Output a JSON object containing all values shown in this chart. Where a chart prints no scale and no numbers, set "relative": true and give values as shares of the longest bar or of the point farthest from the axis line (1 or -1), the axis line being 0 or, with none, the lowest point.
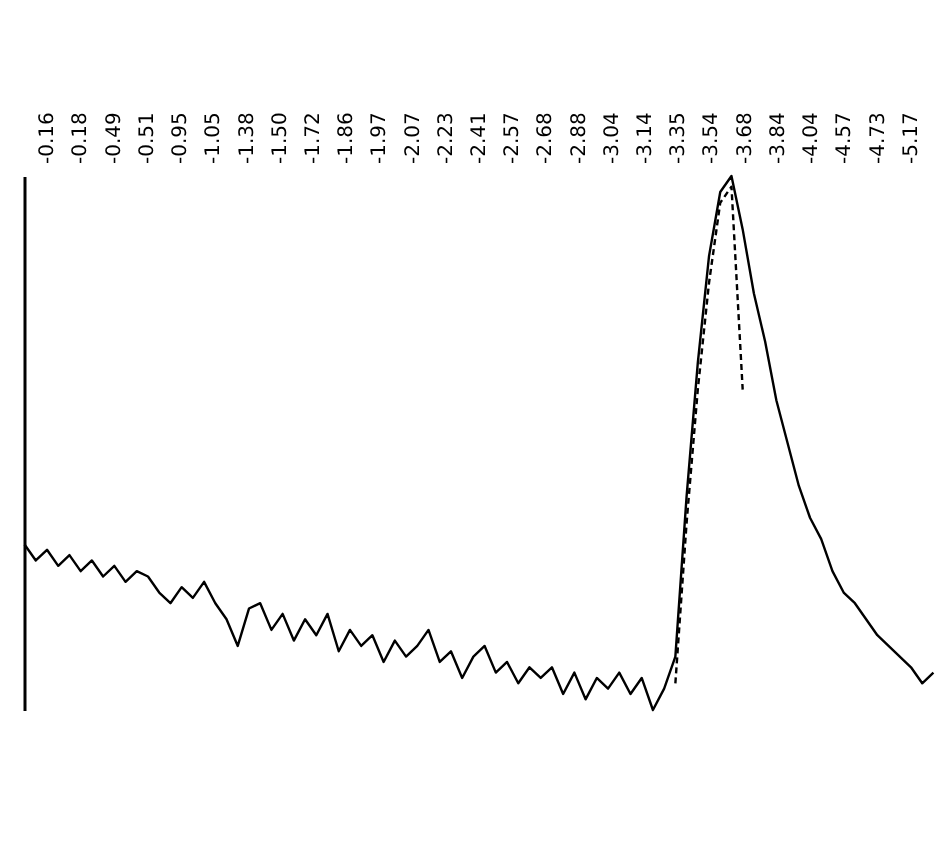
{
  "chart_data": {
    "type": "line",
    "relative": true,
    "tick_labels": false,
    "grid": false,
    "marker": "none",
    "annotations": [
      "-0.16",
      "-0.18",
      "-0.49",
      "-0.51",
      "-0.95",
      "-1.05",
      "-1.38",
      "-1.50",
      "-1.72",
      "-1.86",
      "-1.97",
      "-2.07",
      "-2.23",
      "-2.41",
      "-2.57",
      "-2.68",
      "-2.88",
      "-3.04",
      "-3.14",
      "-3.35",
      "-3.54",
      "-3.68",
      "-3.84",
      "-4.04",
      "-4.57",
      "-4.73",
      "-5.17"
    ],
    "categories": [
      null,
      null,
      null,
      null,
      null,
      null,
      null,
      null,
      null,
      null,
      null,
      null,
      null,
      null,
      null,
      null,
      null,
      null,
      null,
      null,
      null,
      null,
      null,
      null,
      null,
      null,
      null,
      null,
      null,
      null,
      null,
      null,
      null,
      null,
      null,
      null,
      null,
      null,
      null,
      null,
      null,
      null,
      null,
      null,
      null,
      null,
      null,
      null,
      null,
      null,
      null,
      null,
      null,
      null,
      null,
      null,
      null,
      null,
      null,
      null,
      null,
      null,
      null,
      null,
      null,
      null,
      null,
      null,
      null,
      null,
      null,
      null,
      null,
      null,
      null,
      null,
      null,
      null,
      null,
      null,
      null,
      null
    ],
    "series": [
      {
        "color": "#000000",
        "line_style": "solid",
        "values": [
          0.31,
          0.28,
          0.3,
          0.27,
          0.29,
          0.26,
          0.28,
          0.25,
          0.27,
          0.24,
          0.26,
          0.25,
          0.22,
          0.2,
          0.23,
          0.21,
          0.24,
          0.2,
          0.17,
          0.12,
          0.19,
          0.2,
          0.15,
          0.18,
          0.13,
          0.17,
          0.14,
          0.18,
          0.11,
          0.15,
          0.12,
          0.14,
          0.09,
          0.13,
          0.1,
          0.12,
          0.15,
          0.09,
          0.11,
          0.06,
          0.1,
          0.12,
          0.07,
          0.09,
          0.05,
          0.08,
          0.06,
          0.08,
          0.03,
          0.07,
          0.02,
          0.06,
          0.04,
          0.07,
          0.03,
          0.06,
          0,
          0.04,
          0.1,
          0.4,
          0.65,
          0.85,
          0.97,
          1,
          0.9,
          0.78,
          0.69,
          0.58,
          0.5,
          0.42,
          0.36,
          0.32,
          0.26,
          0.22,
          0.2,
          0.17,
          0.14,
          0.12,
          0.1,
          0.08,
          0.05,
          0.07
        ]
      },
      {
        "color": "#000000",
        "line_style": "dashed",
        "values": [
          null,
          null,
          null,
          null,
          null,
          null,
          null,
          null,
          null,
          null,
          null,
          null,
          null,
          null,
          null,
          null,
          null,
          null,
          null,
          null,
          null,
          null,
          null,
          null,
          null,
          null,
          null,
          null,
          null,
          null,
          null,
          null,
          null,
          null,
          null,
          null,
          null,
          null,
          null,
          null,
          null,
          null,
          null,
          null,
          null,
          null,
          null,
          null,
          null,
          null,
          null,
          null,
          null,
          null,
          null,
          null,
          null,
          null,
          0.05,
          0.35,
          0.6,
          0.8,
          0.95,
          0.98,
          0.6,
          null,
          null,
          null,
          null,
          null,
          null,
          null,
          null,
          null,
          null,
          null,
          null,
          null,
          null,
          null,
          null,
          null
        ]
      }
    ]
  }
}
